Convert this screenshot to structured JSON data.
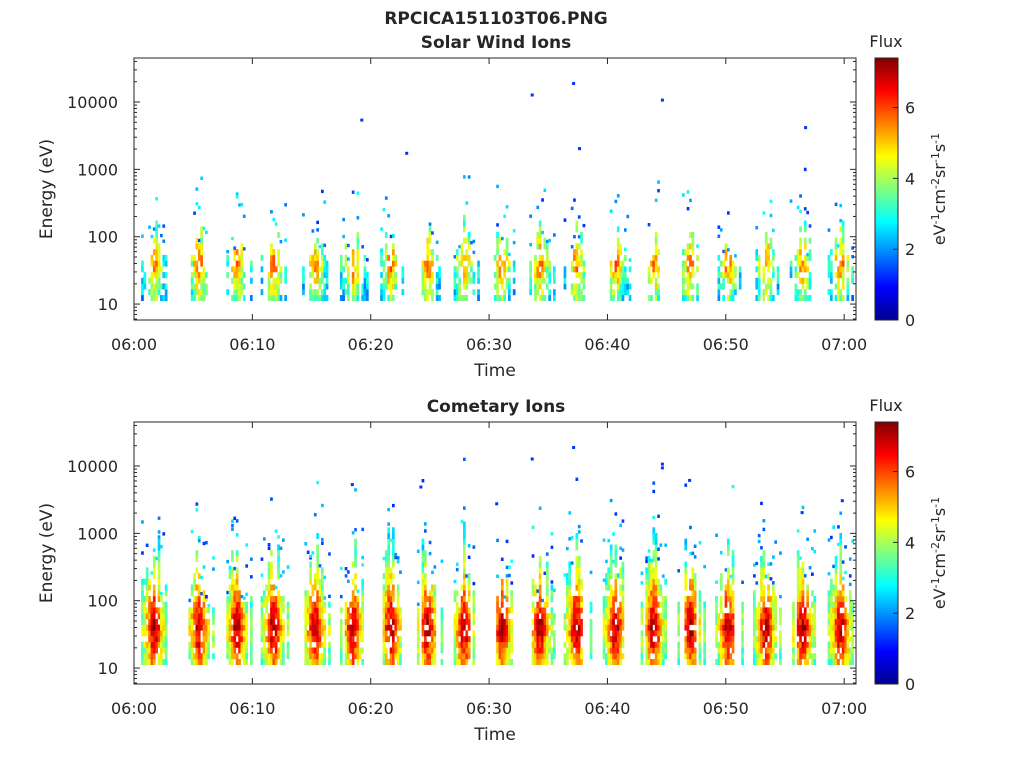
{
  "figure_title": "RPCICA151103T06.PNG",
  "colors": {
    "axis": "#262626",
    "background": "#ffffff"
  },
  "colorbar": {
    "label": "Flux",
    "ticks": [
      "0",
      "2",
      "4",
      "6"
    ],
    "range": [
      0,
      7.4
    ],
    "colormap": "jet"
  },
  "chart_data": [
    {
      "type": "heatmap",
      "title": "Solar Wind Ions",
      "xlabel": "Time",
      "ylabel": "Energy (eV)",
      "x_ticks": [
        "06:00",
        "06:10",
        "06:20",
        "06:30",
        "06:40",
        "06:50",
        "07:00"
      ],
      "y_ticks": [
        "10",
        "100",
        "1000",
        "10000"
      ],
      "y_scale": "log",
      "ylim": [
        5.8,
        45000
      ],
      "xlim_minutes": [
        0,
        61
      ],
      "bursts_minutes": [
        1.6,
        5.4,
        8.6,
        11.7,
        15.2,
        18.4,
        21.6,
        24.7,
        27.8,
        31.0,
        34.2,
        37.3,
        40.6,
        43.8,
        46.9,
        50.1,
        53.3,
        56.4,
        59.6
      ],
      "isolated_points": [
        {
          "t": 19.2,
          "e": 5300
        },
        {
          "t": 23.0,
          "e": 1700
        },
        {
          "t": 33.6,
          "e": 12500
        },
        {
          "t": 37.1,
          "e": 18500
        },
        {
          "t": 37.6,
          "e": 2000
        },
        {
          "t": 44.6,
          "e": 10500
        },
        {
          "t": 56.7,
          "e": 4100
        }
      ],
      "zlabel": "eV⁻¹cm⁻²sr⁻¹s⁻¹",
      "zlim": [
        0,
        7.4
      ]
    },
    {
      "type": "heatmap",
      "title": "Cometary Ions",
      "xlabel": "Time",
      "ylabel": "Energy (eV)",
      "x_ticks": [
        "06:00",
        "06:10",
        "06:20",
        "06:30",
        "06:40",
        "06:50",
        "07:00"
      ],
      "y_ticks": [
        "10",
        "100",
        "1000",
        "10000"
      ],
      "y_scale": "log",
      "ylim": [
        5.8,
        45000
      ],
      "xlim_minutes": [
        0,
        61
      ],
      "bursts_minutes": [
        1.6,
        5.4,
        8.6,
        11.7,
        15.2,
        18.4,
        21.6,
        24.7,
        27.8,
        31.0,
        34.2,
        37.3,
        40.6,
        43.8,
        46.9,
        50.1,
        53.3,
        56.4,
        59.6
      ],
      "isolated_points": [
        {
          "t": 18.4,
          "e": 5200
        },
        {
          "t": 24.2,
          "e": 4800
        },
        {
          "t": 30.6,
          "e": 2700
        },
        {
          "t": 33.6,
          "e": 12500
        },
        {
          "t": 37.1,
          "e": 18500
        },
        {
          "t": 44.6,
          "e": 10500
        },
        {
          "t": 44.6,
          "e": 9200
        },
        {
          "t": 46.9,
          "e": 6000
        },
        {
          "t": 56.4,
          "e": 2000
        },
        {
          "t": 59.8,
          "e": 3000
        }
      ],
      "zlabel": "eV⁻¹cm⁻²sr⁻¹s⁻¹",
      "zlim": [
        0,
        7.4
      ]
    }
  ]
}
